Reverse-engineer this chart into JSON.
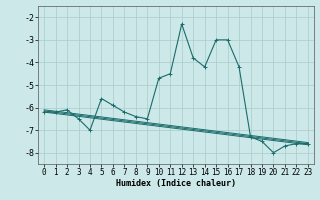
{
  "xlabel": "Humidex (Indice chaleur)",
  "ylabel": "",
  "bg_color": "#cce8e8",
  "grid_color": "#aacccc",
  "line_color": "#1a6b6b",
  "xlim": [
    -0.5,
    23.5
  ],
  "ylim": [
    -8.5,
    -1.5
  ],
  "xticks": [
    0,
    1,
    2,
    3,
    4,
    5,
    6,
    7,
    8,
    9,
    10,
    11,
    12,
    13,
    14,
    15,
    16,
    17,
    18,
    19,
    20,
    21,
    22,
    23
  ],
  "yticks": [
    -2,
    -3,
    -4,
    -5,
    -6,
    -7,
    -8
  ],
  "series_x": [
    0,
    1,
    2,
    3,
    4,
    5,
    6,
    7,
    8,
    9,
    10,
    11,
    12,
    13,
    14,
    15,
    16,
    17,
    18,
    19,
    20,
    21,
    22,
    23
  ],
  "series_y": [
    -6.2,
    -6.2,
    -6.1,
    -6.5,
    -7.0,
    -5.6,
    -5.9,
    -6.2,
    -6.4,
    -6.5,
    -4.7,
    -4.5,
    -2.3,
    -3.8,
    -4.2,
    -3.0,
    -3.0,
    -4.2,
    -7.3,
    -7.5,
    -8.0,
    -7.7,
    -7.6,
    -7.6
  ],
  "extra_lines": [
    {
      "x": [
        0,
        23
      ],
      "y": [
        -6.2,
        -7.65
      ]
    },
    {
      "x": [
        0,
        23
      ],
      "y": [
        -6.15,
        -7.6
      ]
    },
    {
      "x": [
        0,
        23
      ],
      "y": [
        -6.1,
        -7.55
      ]
    }
  ]
}
